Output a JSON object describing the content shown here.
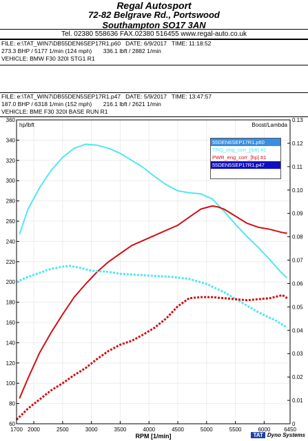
{
  "header": {
    "company": "Regal Autosport",
    "address1": "72-82 Belgrave Rd., Portswood",
    "address2": "Southampton SO17 3AN",
    "contact": "Tel. 02380 558636      FAX.02380 516455      www.regal-auto.co.uk"
  },
  "run1": {
    "file_line": "FILE: e:\\TAT_WIN7\\DB55DEN6SEP17R1.p60   DATE: 6/9/2017   TIME: 11:18:52",
    "result_line": "273.3 BHP / 5177 1/min (124 mph)       336.1 lbft / 2882 1/min",
    "vehicle_line": "VEHICLE: BMW F30 320I STG1 R1"
  },
  "run2": {
    "file_line": "FILE: e:\\TAT_WIN7\\DB55DEN5SEP17R1.p47   DATE: 5/9/2017   TIME: 13:47:57",
    "result_line": "187.0 BHP / 6318 1/min (152 mph)       216.1 lbft / 2621 1/min",
    "vehicle_line": "VEHICLE: BME F30 320I BASE RUN R1"
  },
  "legend": {
    "item1": "55DEN6SEP17R1.p60",
    "item2": "TRQ_eng_corr_[lbft] #1",
    "item3": "PWR_eng_corr_[hp] #1",
    "item4": "55DEN5SEP17R1.p47"
  },
  "brand": {
    "tat": "TAT",
    "name": "Dyno Systems"
  },
  "colors": {
    "torque": "#4de8f0",
    "power": "#d40d12",
    "legend_highlight": "#3a8de0",
    "legend_highlight2": "#1010c0"
  },
  "chart_data": {
    "type": "line",
    "xlabel": "RPM  [1/min]",
    "ylabel_left": "hp/lbft",
    "ylabel_right": "Boost/Lambda",
    "xlim": [
      1700,
      6450
    ],
    "ylim_left": [
      60,
      360
    ],
    "ylim_right": [
      0,
      0.13
    ],
    "x_ticks": [
      1700,
      2000,
      2500,
      3000,
      3500,
      4000,
      4500,
      5000,
      5500,
      6000,
      6450
    ],
    "y_ticks_left": [
      60,
      80,
      100,
      120,
      140,
      160,
      180,
      200,
      220,
      240,
      260,
      280,
      300,
      320,
      340,
      360
    ],
    "y_ticks_right": [
      "0",
      "0.01",
      "0.02",
      "0.03",
      "0.04",
      "0.05",
      "0.06",
      "0.07",
      "0.08",
      "0.09",
      "0.10",
      "0.11",
      "0.12",
      "0.13"
    ],
    "series": [
      {
        "name": "55DEN6SEP17R1.p60 TRQ_eng_corr_[lbft] #1",
        "color": "#4de8f0",
        "style": "solid",
        "x": [
          1750,
          1900,
          2100,
          2300,
          2500,
          2700,
          2900,
          3100,
          3300,
          3500,
          3700,
          3900,
          4100,
          4300,
          4500,
          4700,
          4900,
          5100,
          5300,
          5500,
          5700,
          5900,
          6100,
          6300,
          6400
        ],
        "y": [
          247,
          272,
          293,
          310,
          323,
          332,
          336,
          335,
          332,
          327,
          320,
          313,
          304,
          296,
          290,
          288,
          287,
          282,
          270,
          257,
          245,
          234,
          222,
          209,
          204
        ]
      },
      {
        "name": "55DEN6SEP17R1.p60 PWR_eng_corr_[hp] #1",
        "color": "#d40d12",
        "style": "solid",
        "x": [
          1750,
          1900,
          2100,
          2300,
          2500,
          2700,
          2900,
          3100,
          3300,
          3500,
          3700,
          3900,
          4100,
          4300,
          4500,
          4700,
          4900,
          5100,
          5200,
          5300,
          5500,
          5700,
          5900,
          6100,
          6300,
          6400
        ],
        "y": [
          85,
          105,
          130,
          150,
          168,
          185,
          198,
          210,
          220,
          228,
          236,
          241,
          246,
          251,
          256,
          264,
          272,
          275,
          274,
          272,
          265,
          258,
          254,
          252,
          249,
          248
        ]
      },
      {
        "name": "55DEN5SEP17R1.p47 TRQ_eng_corr_[lbft] #1",
        "color": "#4de8f0",
        "style": "dotted",
        "x": [
          1700,
          1900,
          2100,
          2300,
          2500,
          2621,
          2800,
          3000,
          3300,
          3500,
          3800,
          4100,
          4400,
          4700,
          5000,
          5300,
          5600,
          5900,
          6200,
          6400
        ],
        "y": [
          200,
          205,
          209,
          213,
          215,
          216,
          214,
          211,
          210,
          208,
          207,
          206,
          205,
          203,
          198,
          190,
          180,
          170,
          162,
          155
        ]
      },
      {
        "name": "55DEN5SEP17R1.p47 PWR_eng_corr_[hp] #1",
        "color": "#d40d12",
        "style": "dotted",
        "x": [
          1700,
          1900,
          2100,
          2300,
          2500,
          2700,
          2900,
          3100,
          3300,
          3500,
          3700,
          3900,
          4100,
          4300,
          4500,
          4700,
          4900,
          5100,
          5300,
          5500,
          5700,
          5900,
          6100,
          6318,
          6400
        ],
        "y": [
          64,
          75,
          84,
          93,
          100,
          108,
          115,
          124,
          132,
          138,
          142,
          148,
          155,
          164,
          176,
          184,
          185,
          185,
          184,
          183,
          182,
          183,
          184,
          187,
          184
        ]
      }
    ]
  }
}
